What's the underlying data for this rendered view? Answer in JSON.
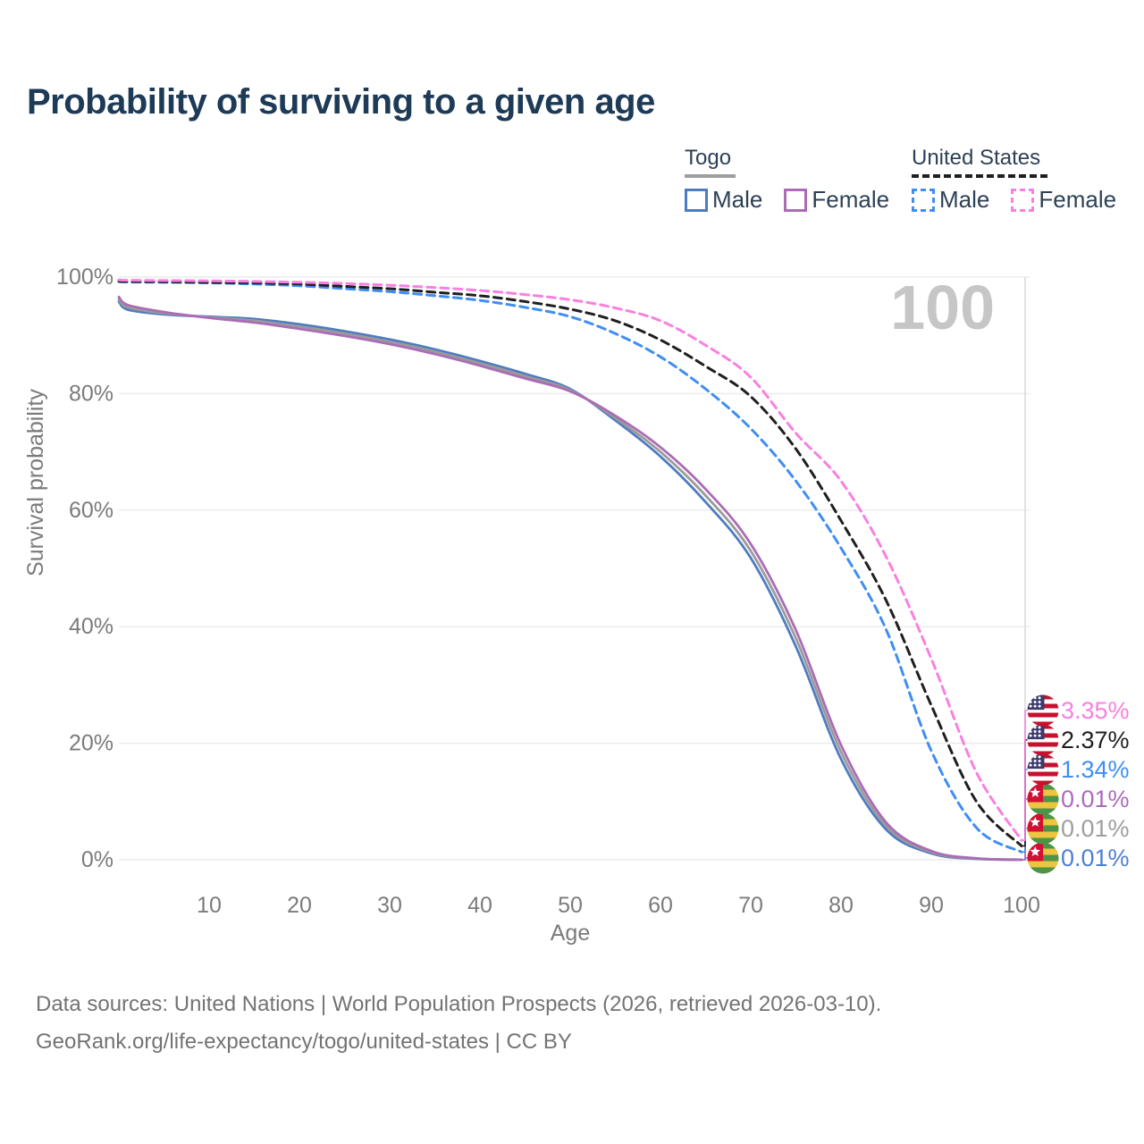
{
  "header": {
    "title": "Probability of surviving to a given age"
  },
  "legend": {
    "groups": [
      {
        "title": "Togo",
        "line_style": "solid",
        "underline_color": "#9e9e9e",
        "items": [
          {
            "label": "Male",
            "color": "#4e7cc0",
            "dashed": false
          },
          {
            "label": "Female",
            "color": "#ab6cb5",
            "dashed": false
          }
        ]
      },
      {
        "title": "United States",
        "line_style": "dashed",
        "underline_color": "#1f1f1f",
        "items": [
          {
            "label": "Male",
            "color": "#3f8ef4",
            "dashed": true
          },
          {
            "label": "Female",
            "color": "#f980e0",
            "dashed": true
          }
        ]
      }
    ]
  },
  "chart_data": {
    "type": "line",
    "title": "Probability of surviving to a given age",
    "xlabel": "Age",
    "ylabel": "Survival probability",
    "xlim": [
      0,
      100
    ],
    "ylim": [
      0,
      100
    ],
    "x_ticks": [
      10,
      20,
      30,
      40,
      50,
      60,
      70,
      80,
      90,
      100
    ],
    "y_ticks": [
      0,
      20,
      40,
      60,
      80,
      100
    ],
    "y_tick_suffix": "%",
    "grid": "horizontal",
    "legend_position": "top-right",
    "hover_age_label": "100",
    "hover_age": 100,
    "ages": [
      0,
      1,
      5,
      10,
      15,
      20,
      25,
      30,
      35,
      40,
      45,
      50,
      55,
      60,
      65,
      70,
      75,
      80,
      85,
      90,
      95,
      100
    ],
    "series": [
      {
        "id": "togo-male",
        "country": "Togo",
        "sex": "Male",
        "color": "#4e7cc0",
        "dashed": false,
        "flag": "togo",
        "end_label": "0.01%",
        "end_value": 0.01,
        "label_color": "#4d7fd6",
        "label_row": 5,
        "values": [
          95.8,
          94.4,
          93.6,
          93.2,
          92.8,
          91.9,
          90.7,
          89.3,
          87.6,
          85.6,
          83.4,
          80.8,
          75.4,
          69.2,
          61.4,
          51.8,
          36.6,
          17.3,
          5.2,
          1.1,
          0.15,
          0.01
        ]
      },
      {
        "id": "togo-both",
        "country": "Togo",
        "sex": "Both sexes",
        "color": "#9b9b9b",
        "dashed": false,
        "flag": "togo",
        "end_label": "0.01%",
        "end_value": 0.01,
        "label_color": "#9e9e9e",
        "label_row": 4,
        "values": [
          96.2,
          94.8,
          93.8,
          93.1,
          92.5,
          91.5,
          90.3,
          88.9,
          87.2,
          85.2,
          83.0,
          80.6,
          75.8,
          70.0,
          62.5,
          53.0,
          38.0,
          18.5,
          5.8,
          1.3,
          0.2,
          0.01
        ]
      },
      {
        "id": "togo-female",
        "country": "Togo",
        "sex": "Female",
        "color": "#ab6cb5",
        "dashed": false,
        "flag": "togo",
        "end_label": "0.01%",
        "end_value": 0.01,
        "label_color": "#ad6abd",
        "label_row": 3,
        "values": [
          96.6,
          95.2,
          94.0,
          93.0,
          92.2,
          91.1,
          89.9,
          88.5,
          86.8,
          84.8,
          82.6,
          80.4,
          76.2,
          70.8,
          63.6,
          54.2,
          39.4,
          19.7,
          6.4,
          1.5,
          0.25,
          0.01
        ]
      },
      {
        "id": "us-male",
        "country": "United States",
        "sex": "Male",
        "color": "#3f8ef4",
        "dashed": true,
        "flag": "us",
        "end_label": "1.34%",
        "end_value": 1.34,
        "label_color": "#3f8ef4",
        "label_row": 2,
        "values": [
          99.2,
          99.15,
          99.1,
          99.0,
          98.8,
          98.5,
          98.0,
          97.5,
          96.8,
          96.0,
          94.8,
          93.2,
          90.3,
          86.3,
          80.8,
          74.0,
          65.0,
          53.5,
          39.5,
          18.7,
          5.5,
          1.34
        ]
      },
      {
        "id": "us-both",
        "country": "United States",
        "sex": "Both sexes",
        "color": "#1f1f1f",
        "dashed": true,
        "flag": "us",
        "end_label": "2.37%",
        "end_value": 2.37,
        "label_color": "#1f1f1f",
        "label_row": 1,
        "values": [
          99.3,
          99.25,
          99.2,
          99.1,
          99.0,
          98.8,
          98.4,
          98.0,
          97.4,
          96.8,
          95.8,
          94.5,
          92.5,
          89.2,
          84.7,
          79.5,
          70.5,
          58.2,
          44.5,
          26.5,
          10.0,
          2.37
        ]
      },
      {
        "id": "us-female",
        "country": "United States",
        "sex": "Female",
        "color": "#f980e0",
        "dashed": true,
        "flag": "us",
        "end_label": "3.35%",
        "end_value": 3.35,
        "label_color": "#f980e0",
        "label_row": 0,
        "values": [
          99.5,
          99.45,
          99.4,
          99.35,
          99.25,
          99.1,
          98.9,
          98.6,
          98.2,
          97.7,
          97.0,
          96.1,
          94.7,
          92.5,
          88.3,
          82.8,
          73.2,
          65.0,
          52.0,
          34.5,
          15.0,
          3.35
        ]
      }
    ],
    "flag_colors": {
      "us": {
        "canton": "#3c3b6e",
        "stripe": "#c8102e",
        "white": "#ffffff"
      },
      "togo": {
        "green": "#4d9446",
        "yellow": "#edc53f",
        "red": "#d21034",
        "white": "#ffffff"
      }
    }
  },
  "watermark": "100",
  "footer": {
    "line1": "Data sources: United Nations | World Population Prospects (2026, retrieved 2026-03-10).",
    "line2": "GeoRank.org/life-expectancy/togo/united-states | CC BY"
  },
  "colors": {
    "title": "#1d3a57",
    "legend_text": "#2d4156",
    "axis_text": "#7b7b7b",
    "grid": "#ececec",
    "crosshair": "#d9d9d9",
    "watermark": "#c6c6c6",
    "footer_text": "#737373",
    "background": "#ffffff"
  }
}
